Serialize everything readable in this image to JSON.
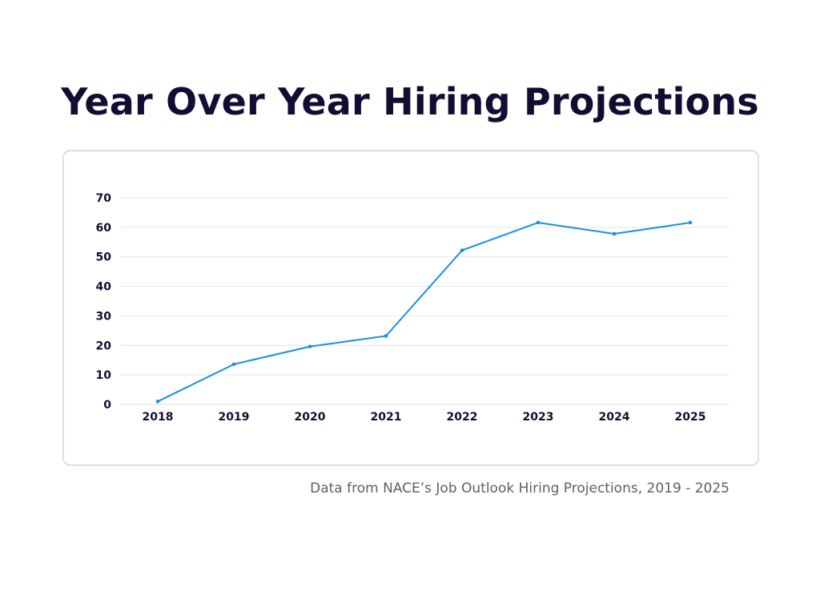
{
  "page": {
    "title": "Year Over Year Hiring Projections",
    "source_note": "Data from NACE’s Job Outlook Hiring Projections, 2019 - 2025"
  },
  "colors": {
    "title": "#150c33",
    "line": "#1a8fe3",
    "card_border": "#dedede",
    "source_text": "#5f5f5f"
  },
  "chart_data": {
    "type": "line",
    "title": "",
    "xlabel": "",
    "ylabel": "",
    "categories": [
      "2018",
      "2019",
      "2020",
      "2021",
      "2022",
      "2023",
      "2024",
      "2025"
    ],
    "series": [
      {
        "values": [
          1,
          13.6,
          19.6,
          23.2,
          52.2,
          61.6,
          57.8,
          61.6
        ]
      }
    ],
    "yticks": [
      0,
      10,
      20,
      30,
      40,
      50,
      60,
      70
    ],
    "ylim": [
      0,
      70
    ],
    "grid": true,
    "legend": "none"
  }
}
